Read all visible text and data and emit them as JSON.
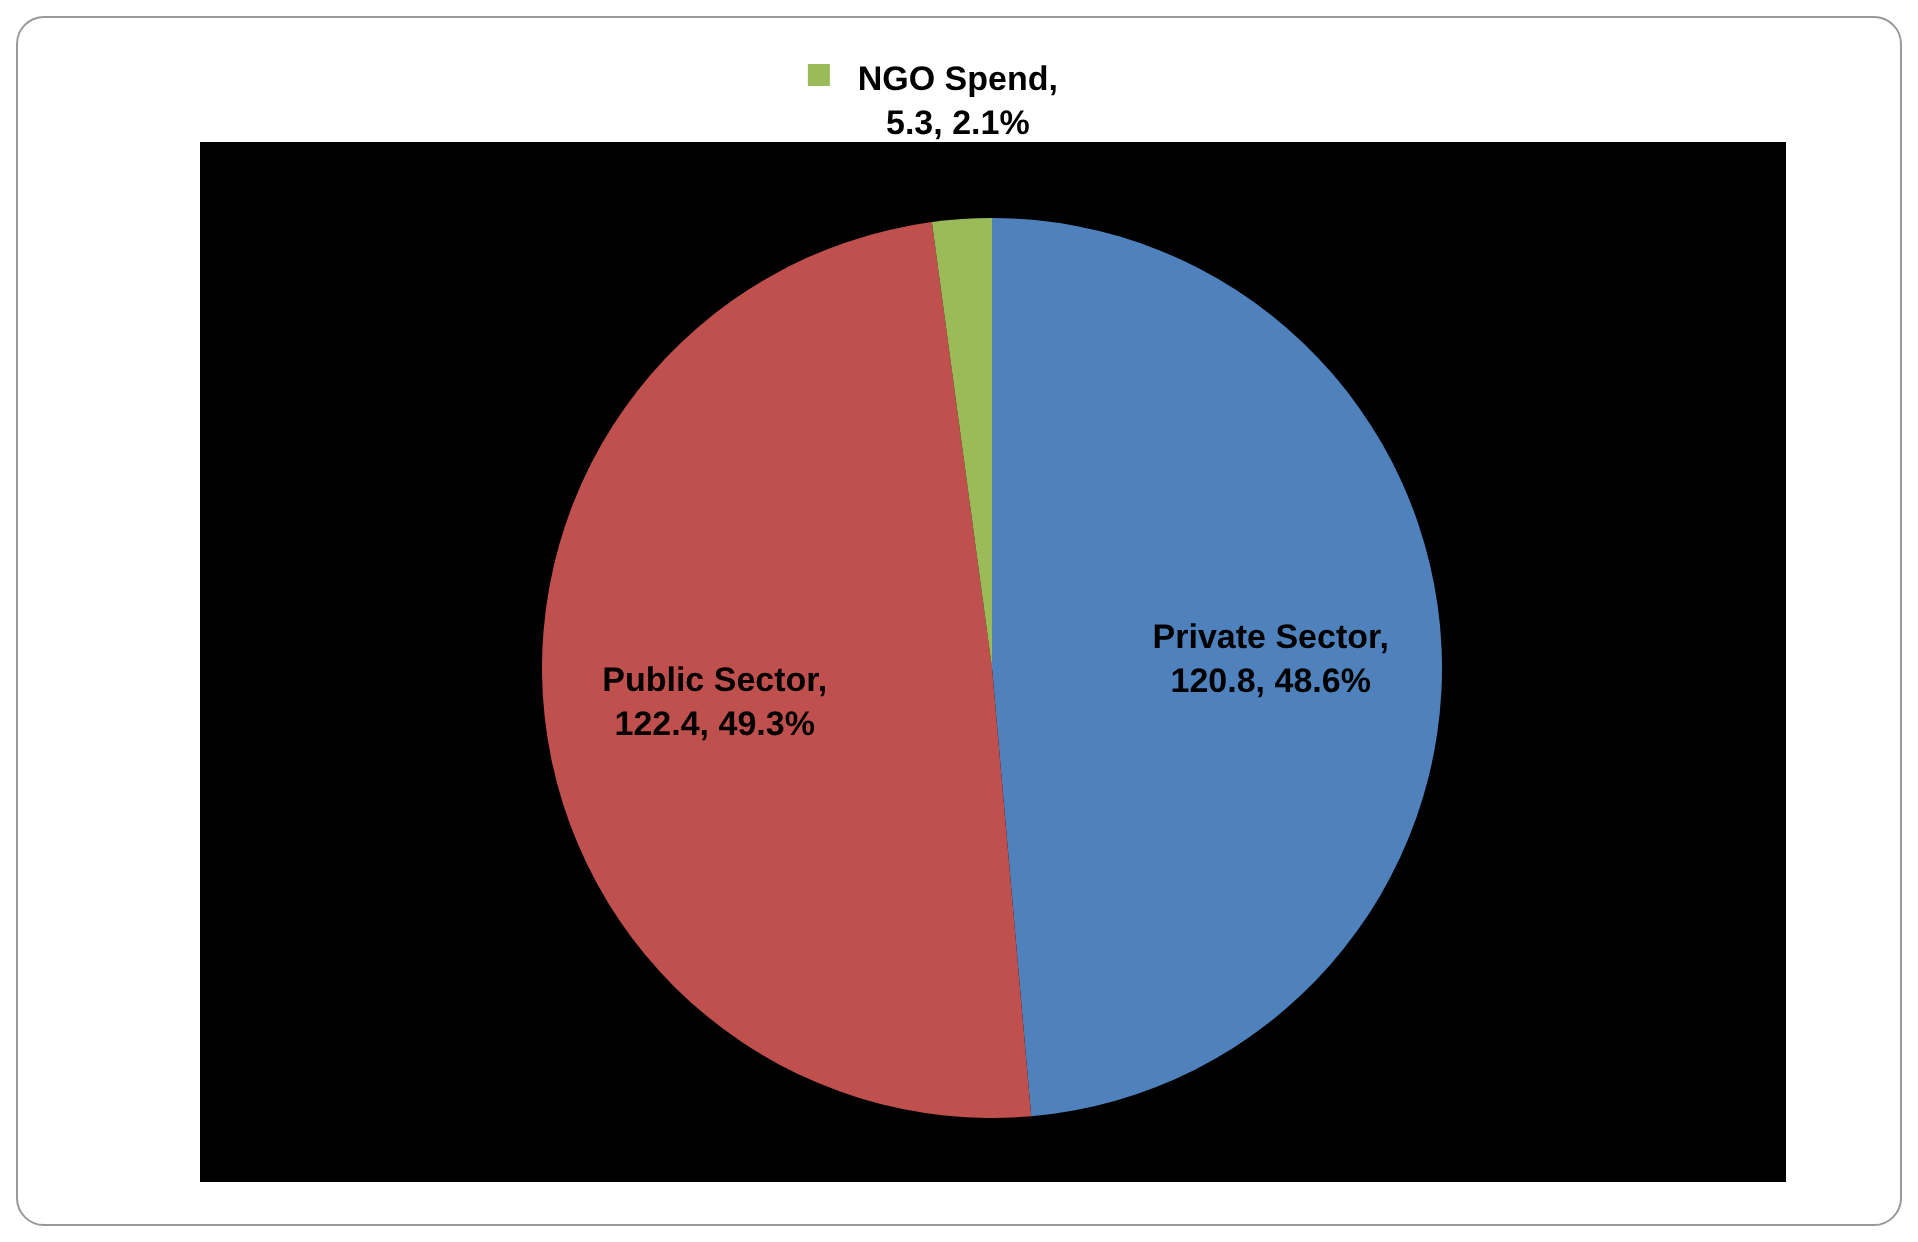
{
  "chart_data": {
    "type": "pie",
    "categories": [
      "Private Sector",
      "Public Sector",
      "NGO Spend"
    ],
    "values": [
      120.8,
      122.4,
      5.3
    ],
    "colors": [
      "#4f81bd",
      "#c0504d",
      "#9bbb59"
    ],
    "value_labels": [
      ", 120.8, 48.6%",
      ", 122.4, 49.3%",
      ", 5.3, 2.1%"
    ],
    "legend": "top"
  }
}
